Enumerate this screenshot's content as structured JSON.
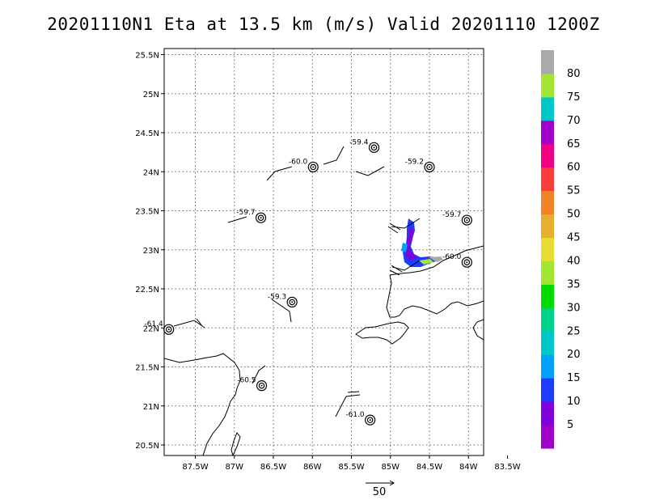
{
  "title": "20201110N1 Eta at 13.5 km (m/s) Valid 20201110  1200Z",
  "map": {
    "lat_labels": [
      {
        "lat": 25.5,
        "label": "25.5N"
      },
      {
        "lat": 25.0,
        "label": "25N"
      },
      {
        "lat": 24.5,
        "label": "24.5N"
      },
      {
        "lat": 24.0,
        "label": "24N"
      },
      {
        "lat": 23.5,
        "label": "23.5N"
      },
      {
        "lat": 23.0,
        "label": "23N"
      },
      {
        "lat": 22.5,
        "label": "22.5N"
      },
      {
        "lat": 22.0,
        "label": "22N"
      },
      {
        "lat": 21.5,
        "label": "21.5N"
      },
      {
        "lat": 21.0,
        "label": "21N"
      },
      {
        "lat": 20.5,
        "label": "20.5N"
      }
    ],
    "lon_labels": [
      {
        "lon": -87.5,
        "label": "87.5W"
      },
      {
        "lon": -87.0,
        "label": "87W"
      },
      {
        "lon": -86.5,
        "label": "86.5W"
      },
      {
        "lon": -86.0,
        "label": "86W"
      },
      {
        "lon": -85.5,
        "label": "85.5W"
      },
      {
        "lon": -85.0,
        "label": "85W"
      },
      {
        "lon": -84.5,
        "label": "84.5W"
      },
      {
        "lon": -84.0,
        "label": "84W"
      },
      {
        "lon": -83.5,
        "label": "83.5W"
      }
    ]
  },
  "stations": [
    {
      "lat": 24.31,
      "lon": -85.21,
      "label": "-59.4"
    },
    {
      "lat": 24.06,
      "lon": -85.99,
      "label": "-60.0"
    },
    {
      "lat": 24.06,
      "lon": -84.5,
      "label": "-59.2"
    },
    {
      "lat": 23.41,
      "lon": -86.66,
      "label": "-59.7"
    },
    {
      "lat": 23.38,
      "lon": -84.02,
      "label": "-59.7"
    },
    {
      "lat": 22.84,
      "lon": -84.02,
      "label": "-60.0"
    },
    {
      "lat": 22.33,
      "lon": -86.26,
      "label": "-59.3"
    },
    {
      "lat": 21.98,
      "lon": -87.84,
      "label": "-61.4"
    },
    {
      "lat": 21.26,
      "lon": -86.65,
      "label": "-60.5"
    },
    {
      "lat": 20.82,
      "lon": -85.26,
      "label": "-61.0"
    }
  ],
  "colorbar": {
    "units": "m/s",
    "labels": [
      "5",
      "10",
      "15",
      "20",
      "25",
      "30",
      "35",
      "40",
      "45",
      "50",
      "55",
      "60",
      "65",
      "70",
      "75",
      "80"
    ],
    "colors": [
      "#a000c8",
      "#8200dc",
      "#1e3cff",
      "#00a0ff",
      "#00c8c8",
      "#00d28c",
      "#00dc00",
      "#a0e632",
      "#e6dc32",
      "#e6af2d",
      "#f08228",
      "#fa3c3c",
      "#f00082",
      "#a000c8",
      "#00c8c8",
      "#a0e632",
      "#aaaaaa"
    ]
  },
  "reference_vector": {
    "label": "50"
  }
}
